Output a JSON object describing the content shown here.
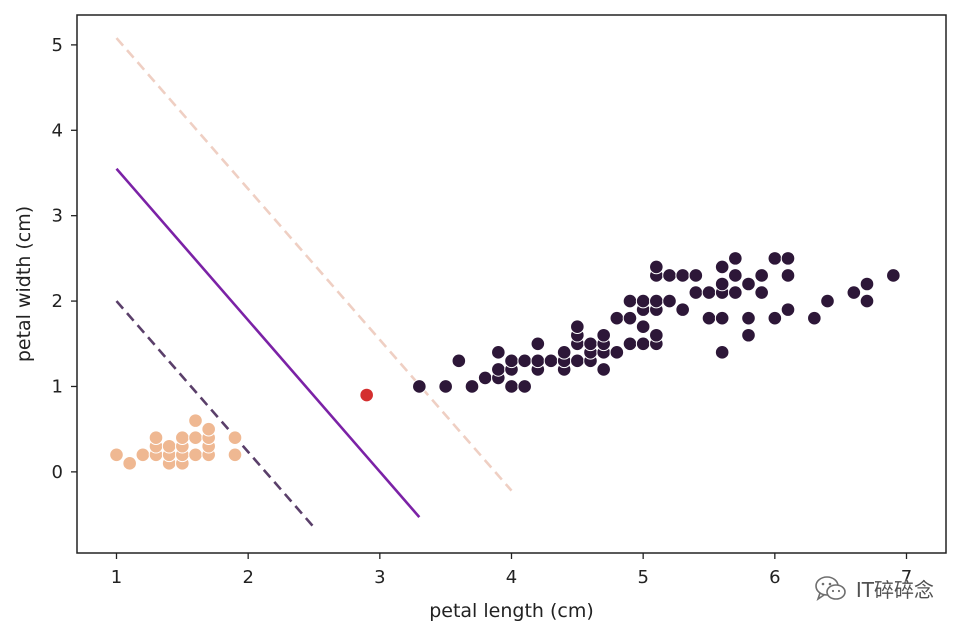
{
  "chart_data": {
    "type": "scatter",
    "xlabel": "petal length (cm)",
    "ylabel": "petal width (cm)",
    "xlim": [
      0.7,
      7.3
    ],
    "ylim": [
      -0.95,
      5.35
    ],
    "xticks": [
      1,
      2,
      3,
      4,
      5,
      6,
      7
    ],
    "yticks": [
      0,
      1,
      2,
      3,
      4,
      5
    ],
    "grid": false,
    "series": [
      {
        "color": "#efb892",
        "points": [
          [
            1.0,
            0.2
          ],
          [
            1.1,
            0.1
          ],
          [
            1.2,
            0.2
          ],
          [
            1.3,
            0.2
          ],
          [
            1.3,
            0.3
          ],
          [
            1.3,
            0.4
          ],
          [
            1.4,
            0.1
          ],
          [
            1.4,
            0.2
          ],
          [
            1.4,
            0.3
          ],
          [
            1.5,
            0.1
          ],
          [
            1.5,
            0.2
          ],
          [
            1.5,
            0.3
          ],
          [
            1.5,
            0.4
          ],
          [
            1.6,
            0.2
          ],
          [
            1.6,
            0.4
          ],
          [
            1.6,
            0.6
          ],
          [
            1.7,
            0.2
          ],
          [
            1.7,
            0.3
          ],
          [
            1.7,
            0.4
          ],
          [
            1.7,
            0.5
          ],
          [
            1.9,
            0.2
          ],
          [
            1.9,
            0.4
          ]
        ]
      },
      {
        "color": "#2d1738",
        "points": [
          [
            3.3,
            1.0
          ],
          [
            3.5,
            1.0
          ],
          [
            3.6,
            1.3
          ],
          [
            3.7,
            1.0
          ],
          [
            3.8,
            1.1
          ],
          [
            3.9,
            1.1
          ],
          [
            3.9,
            1.2
          ],
          [
            3.9,
            1.4
          ],
          [
            4.0,
            1.0
          ],
          [
            4.0,
            1.2
          ],
          [
            4.0,
            1.3
          ],
          [
            4.1,
            1.0
          ],
          [
            4.1,
            1.3
          ],
          [
            4.2,
            1.2
          ],
          [
            4.2,
            1.3
          ],
          [
            4.2,
            1.5
          ],
          [
            4.3,
            1.3
          ],
          [
            4.4,
            1.2
          ],
          [
            4.4,
            1.3
          ],
          [
            4.4,
            1.4
          ],
          [
            4.5,
            1.3
          ],
          [
            4.5,
            1.5
          ],
          [
            4.5,
            1.6
          ],
          [
            4.5,
            1.7
          ],
          [
            4.6,
            1.3
          ],
          [
            4.6,
            1.4
          ],
          [
            4.6,
            1.5
          ],
          [
            4.7,
            1.2
          ],
          [
            4.7,
            1.4
          ],
          [
            4.7,
            1.5
          ],
          [
            4.7,
            1.6
          ],
          [
            4.8,
            1.4
          ],
          [
            4.8,
            1.8
          ],
          [
            4.9,
            1.5
          ],
          [
            4.9,
            1.8
          ],
          [
            4.9,
            2.0
          ],
          [
            5.0,
            1.5
          ],
          [
            5.0,
            1.7
          ],
          [
            5.0,
            1.9
          ],
          [
            5.0,
            2.0
          ],
          [
            5.1,
            1.5
          ],
          [
            5.1,
            1.6
          ],
          [
            5.1,
            1.9
          ],
          [
            5.1,
            2.0
          ],
          [
            5.1,
            2.3
          ],
          [
            5.1,
            2.4
          ],
          [
            5.2,
            2.0
          ],
          [
            5.2,
            2.3
          ],
          [
            5.3,
            1.9
          ],
          [
            5.3,
            2.3
          ],
          [
            5.4,
            2.1
          ],
          [
            5.4,
            2.3
          ],
          [
            5.5,
            1.8
          ],
          [
            5.5,
            2.1
          ],
          [
            5.6,
            1.4
          ],
          [
            5.6,
            1.8
          ],
          [
            5.6,
            2.1
          ],
          [
            5.6,
            2.2
          ],
          [
            5.6,
            2.4
          ],
          [
            5.7,
            2.1
          ],
          [
            5.7,
            2.3
          ],
          [
            5.7,
            2.5
          ],
          [
            5.8,
            1.6
          ],
          [
            5.8,
            1.8
          ],
          [
            5.8,
            2.2
          ],
          [
            5.9,
            2.1
          ],
          [
            5.9,
            2.3
          ],
          [
            6.0,
            1.8
          ],
          [
            6.0,
            2.5
          ],
          [
            6.1,
            1.9
          ],
          [
            6.1,
            2.3
          ],
          [
            6.1,
            2.5
          ],
          [
            6.3,
            1.8
          ],
          [
            6.4,
            2.0
          ],
          [
            6.6,
            2.1
          ],
          [
            6.7,
            2.0
          ],
          [
            6.7,
            2.2
          ],
          [
            6.9,
            2.3
          ]
        ]
      },
      {
        "color": "#d42f2f",
        "points": [
          [
            2.9,
            0.9
          ]
        ]
      }
    ],
    "lines": [
      {
        "style": "solid",
        "color": "#7b22a6",
        "x": [
          1.0,
          3.3
        ],
        "y": [
          3.55,
          -0.53
        ]
      },
      {
        "style": "dashed",
        "color": "#5a3f6a",
        "x": [
          1.0,
          2.5
        ],
        "y": [
          2.0,
          -0.65
        ]
      },
      {
        "style": "dashed",
        "color": "#efcfc3",
        "x": [
          1.0,
          4.0
        ],
        "y": [
          5.08,
          -0.22
        ]
      }
    ]
  },
  "watermark": {
    "text": "IT碎碎念",
    "icon": "wechat-icon"
  }
}
